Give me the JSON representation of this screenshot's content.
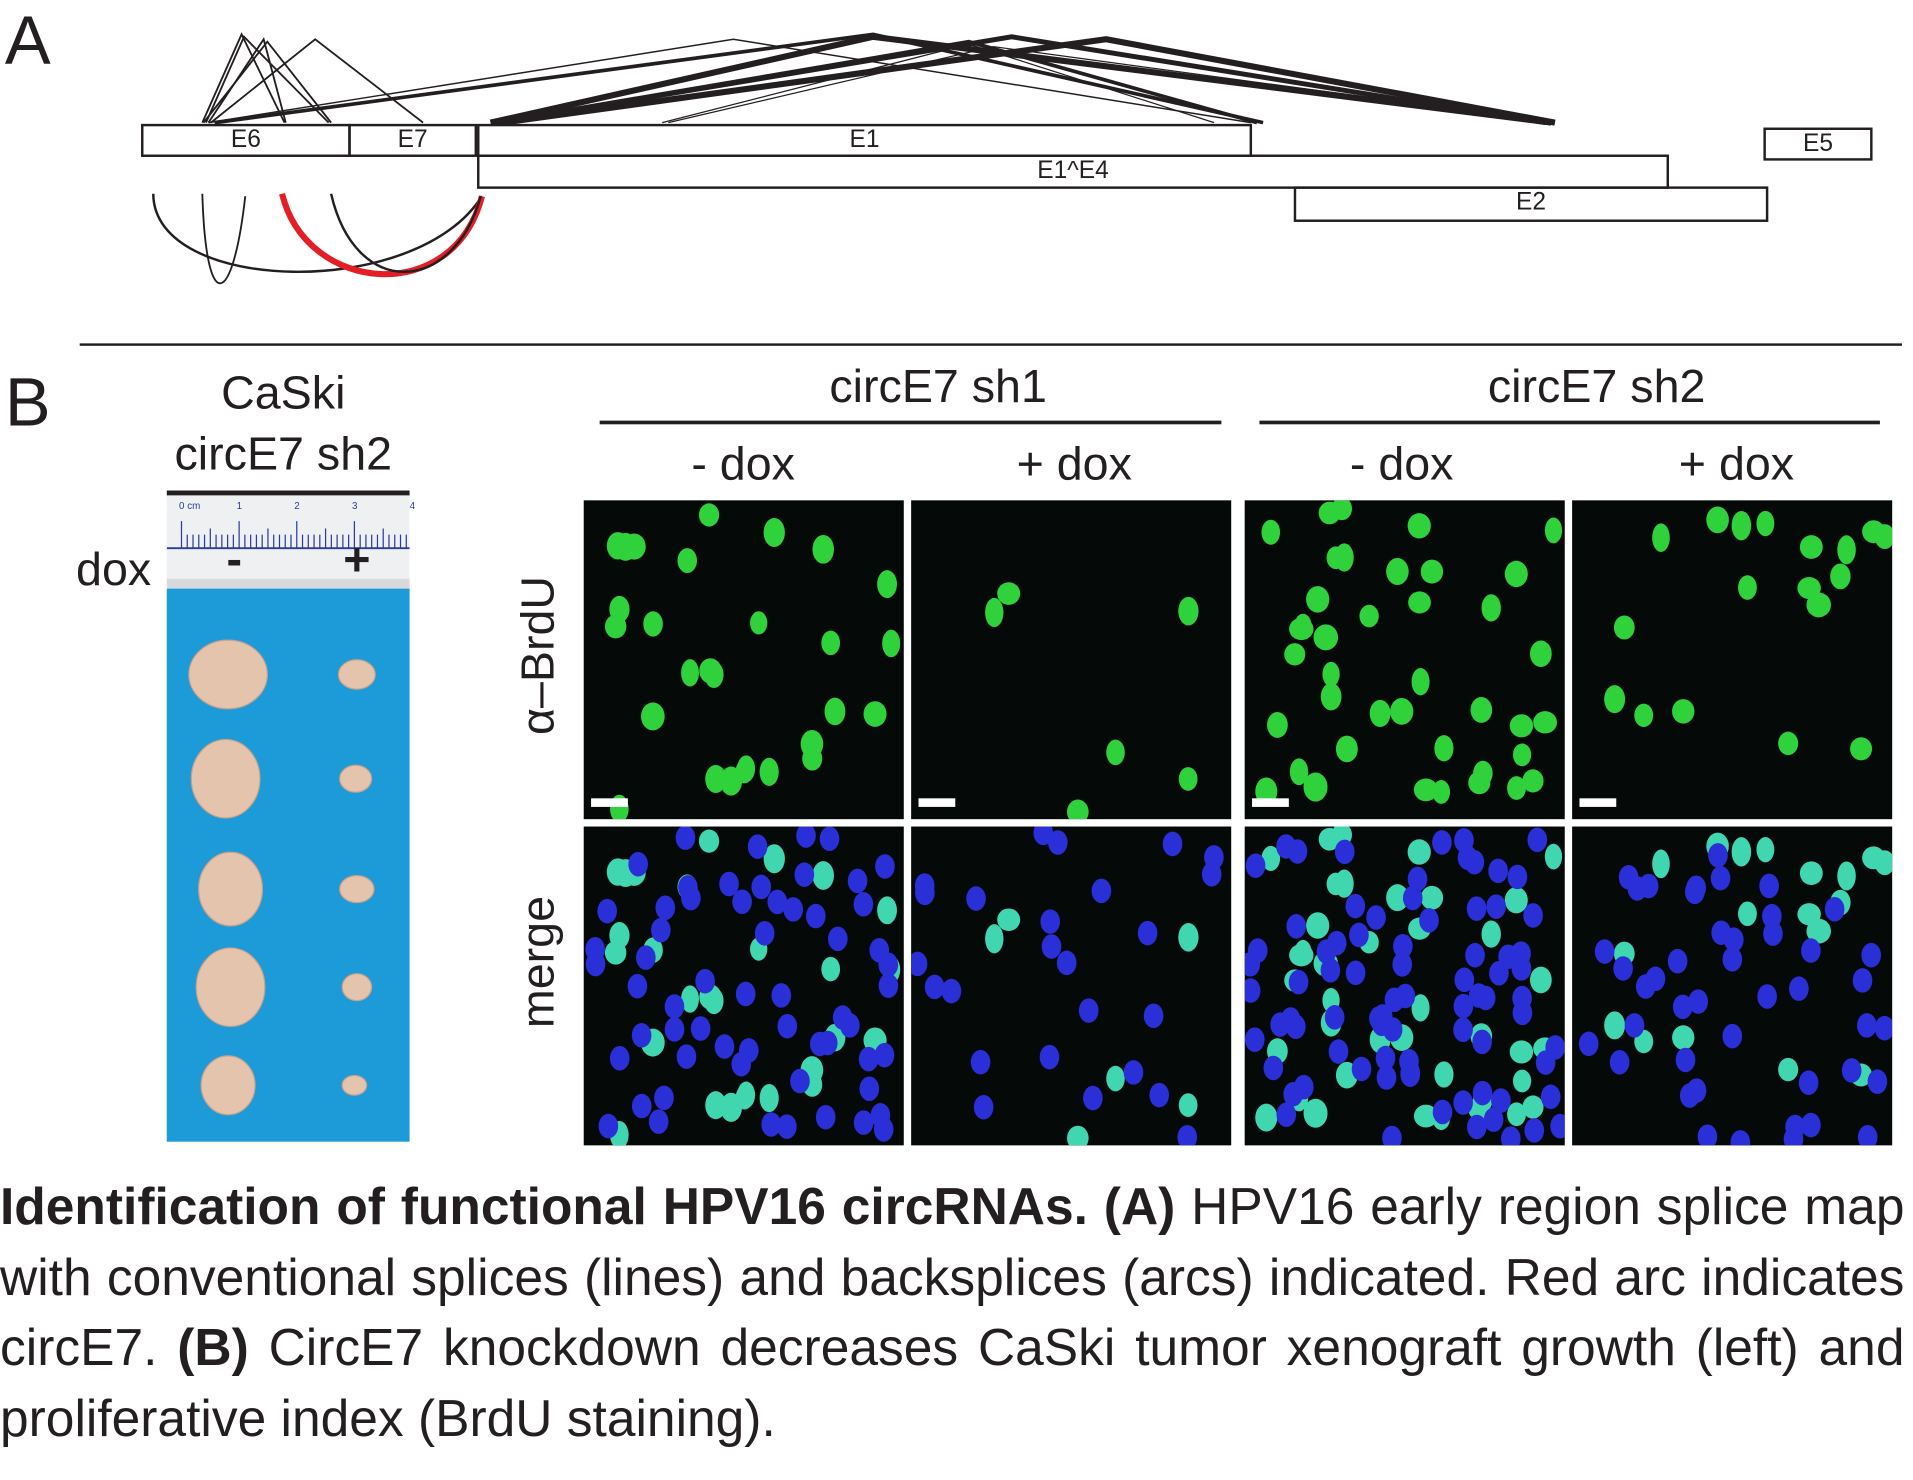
{
  "panel_a": {
    "letter": "A",
    "exons": {
      "e6": "E6",
      "e7": "E7",
      "e1": "E1",
      "e1e4": "E1^E4",
      "e2": "E2",
      "e5": "E5"
    },
    "backsplice_highlight_color": "#e31e24"
  },
  "panel_b": {
    "letter": "B",
    "xenograft": {
      "title_line1": "CaSki",
      "title_line2": "circE7 sh2",
      "dox_label": "dox",
      "minus": "-",
      "plus": "+",
      "ruler_labels": [
        "0 cm",
        "1",
        "2",
        "3",
        "4"
      ]
    },
    "groups": [
      {
        "label": "circE7 sh1",
        "conditions": [
          "- dox",
          "+ dox"
        ]
      },
      {
        "label": "circE7 sh2",
        "conditions": [
          "- dox",
          "+ dox"
        ]
      }
    ],
    "rows": [
      "α–BrdU",
      "merge"
    ]
  },
  "caption": {
    "title": "Identification of functional HPV16 circRNAs.",
    "a_tag": "(A)",
    "a_text": "HPV16 early region splice map with conventional splices (lines) and backsplices (arcs) indicated. Red arc indicates circE7.",
    "b_tag": "(B)",
    "b_text": "CircE7 knockdown decreases CaSki tumor xenograft growth (left) and proliferative index (BrdU staining)."
  }
}
